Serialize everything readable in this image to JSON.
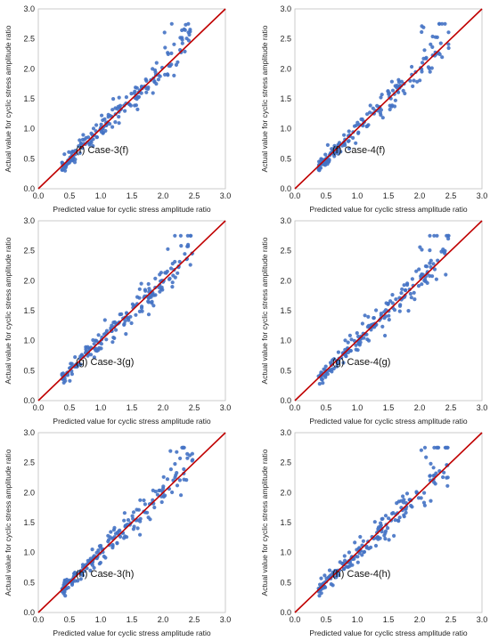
{
  "chart_data": [
    {
      "type": "scatter",
      "panel_label": "(f) Case-3(f)",
      "xlabel": "Predicted value for cyclic stress amplitude ratio",
      "ylabel": "Actual value for cyclic stress amplitude ratio",
      "xlim": [
        0,
        3
      ],
      "ylim": [
        0,
        3
      ],
      "xticks": [
        "0.0",
        "0.5",
        "1.0",
        "1.5",
        "2.0",
        "2.5",
        "3.0"
      ],
      "yticks": [
        "0.0",
        "0.5",
        "1.0",
        "1.5",
        "2.0",
        "2.5",
        "3.0"
      ],
      "reference_line": [
        [
          0,
          0
        ],
        [
          3,
          3
        ]
      ],
      "point_color": "#4472C4",
      "line_color": "#C00000",
      "seed": 11
    },
    {
      "type": "scatter",
      "panel_label": "(f) Case-4(f)",
      "xlabel": "Predicted value for cyclic stress amplitude ratio",
      "ylabel": "Actual value for cyclic stress amplitude ratio",
      "xlim": [
        0,
        3
      ],
      "ylim": [
        0,
        3
      ],
      "xticks": [
        "0.0",
        "0.5",
        "1.0",
        "1.5",
        "2.0",
        "2.5",
        "3.0"
      ],
      "yticks": [
        "0.0",
        "0.5",
        "1.0",
        "1.5",
        "2.0",
        "2.5",
        "3.0"
      ],
      "reference_line": [
        [
          0,
          0
        ],
        [
          3,
          3
        ]
      ],
      "point_color": "#4472C4",
      "line_color": "#C00000",
      "seed": 23
    },
    {
      "type": "scatter",
      "panel_label": "(g) Case-3(g)",
      "xlabel": "Predicted value for cyclic stress amplitude ratio",
      "ylabel": "Actual value for cyclic stress amplitude ratio",
      "xlim": [
        0,
        3
      ],
      "ylim": [
        0,
        3
      ],
      "xticks": [
        "0.0",
        "0.5",
        "1.0",
        "1.5",
        "2.0",
        "2.5",
        "3.0"
      ],
      "yticks": [
        "0.0",
        "0.5",
        "1.0",
        "1.5",
        "2.0",
        "2.5",
        "3.0"
      ],
      "reference_line": [
        [
          0,
          0
        ],
        [
          3,
          3
        ]
      ],
      "point_color": "#4472C4",
      "line_color": "#C00000",
      "seed": 37
    },
    {
      "type": "scatter",
      "panel_label": "(g) Case-4(g)",
      "xlabel": "Predicted value for cyclic stress amplitude ratio",
      "ylabel": "Actual value for cyclic stress amplitude ratio",
      "xlim": [
        0,
        3
      ],
      "ylim": [
        0,
        3
      ],
      "xticks": [
        "0.0",
        "0.5",
        "1.0",
        "1.5",
        "2.0",
        "2.5",
        "3.0"
      ],
      "yticks": [
        "0.0",
        "0.5",
        "1.0",
        "1.5",
        "2.0",
        "2.5",
        "3.0"
      ],
      "reference_line": [
        [
          0,
          0
        ],
        [
          3,
          3
        ]
      ],
      "point_color": "#4472C4",
      "line_color": "#C00000",
      "seed": 41
    },
    {
      "type": "scatter",
      "panel_label": "(h) Case-3(h)",
      "xlabel": "Predicted value for cyclic stress amplitude ratio",
      "ylabel": "Actual value for cyclic stress amplitude ratio",
      "xlim": [
        0,
        3
      ],
      "ylim": [
        0,
        3
      ],
      "xticks": [
        "0.0",
        "0.5",
        "1.0",
        "1.5",
        "2.0",
        "2.5",
        "3.0"
      ],
      "yticks": [
        "0.0",
        "0.5",
        "1.0",
        "1.5",
        "2.0",
        "2.5",
        "3.0"
      ],
      "reference_line": [
        [
          0,
          0
        ],
        [
          3,
          3
        ]
      ],
      "point_color": "#4472C4",
      "line_color": "#C00000",
      "seed": 53
    },
    {
      "type": "scatter",
      "panel_label": "(h) Case-4(h)",
      "xlabel": "Predicted value for cyclic stress amplitude ratio",
      "ylabel": "Actual value for cyclic stress amplitude ratio",
      "xlim": [
        0,
        3
      ],
      "ylim": [
        0,
        3
      ],
      "xticks": [
        "0.0",
        "0.5",
        "1.0",
        "1.5",
        "2.0",
        "2.5",
        "3.0"
      ],
      "yticks": [
        "0.0",
        "0.5",
        "1.0",
        "1.5",
        "2.0",
        "2.5",
        "3.0"
      ],
      "reference_line": [
        [
          0,
          0
        ],
        [
          3,
          3
        ]
      ],
      "point_color": "#4472C4",
      "line_color": "#C00000",
      "seed": 67
    }
  ]
}
